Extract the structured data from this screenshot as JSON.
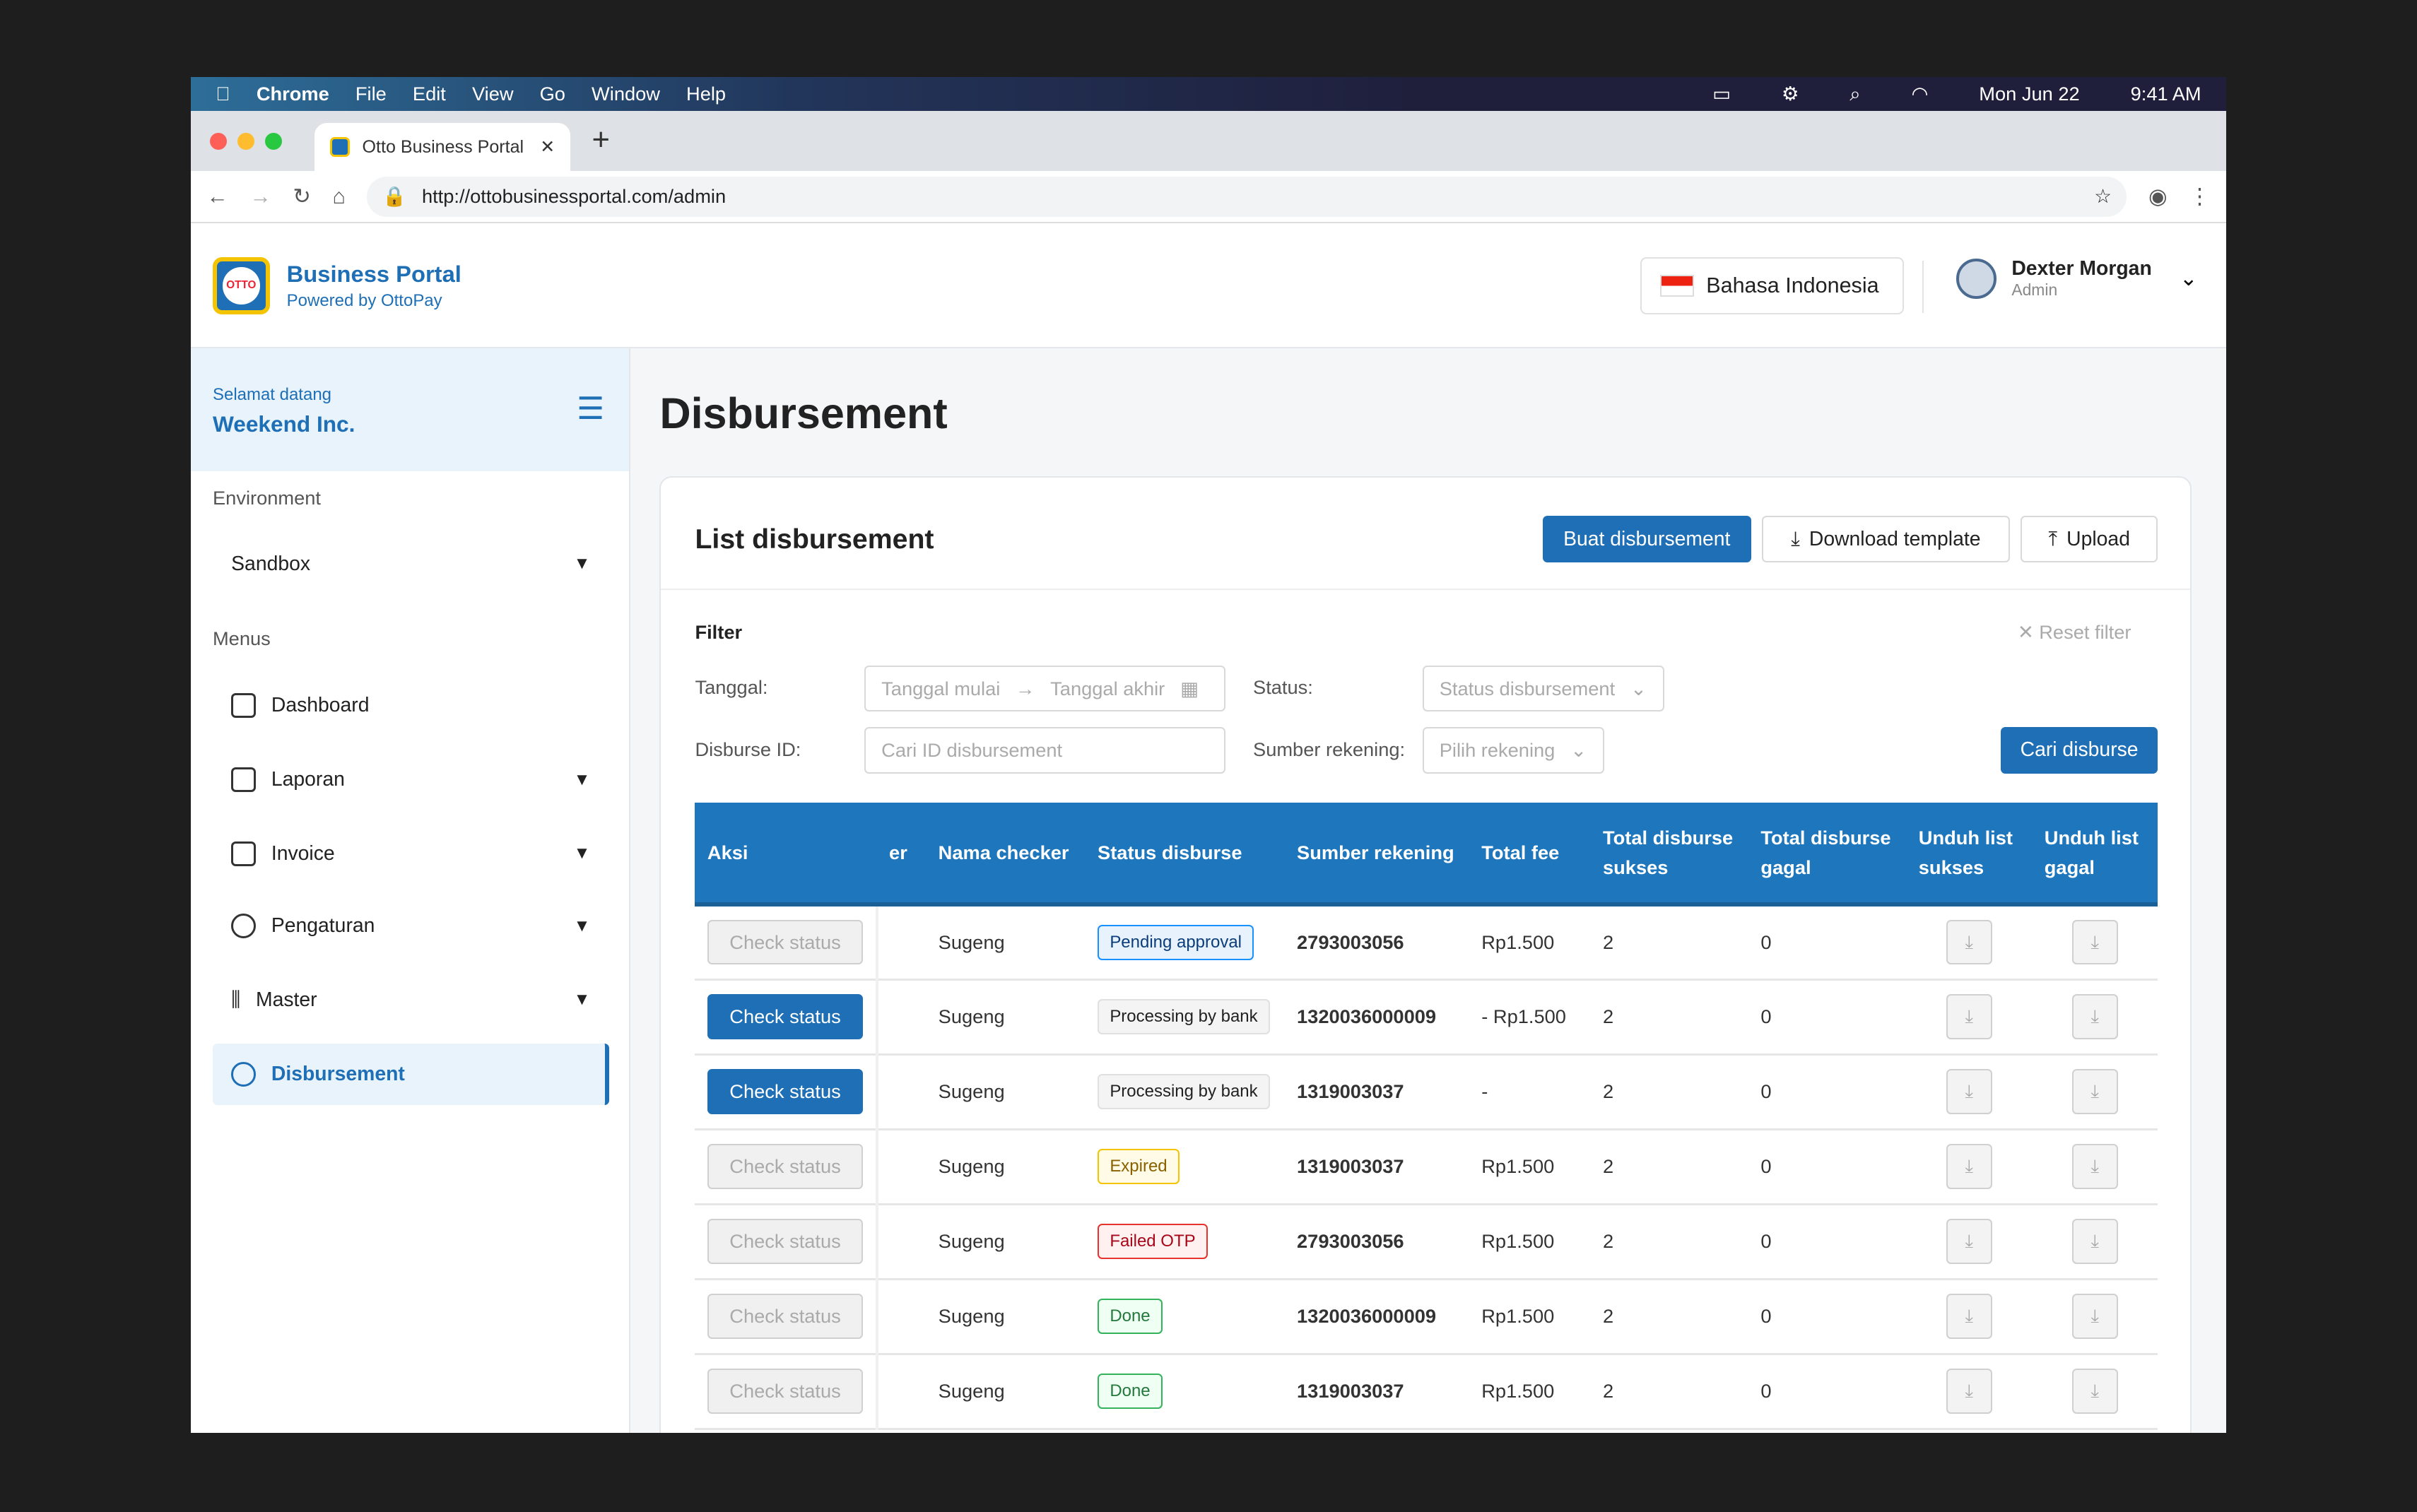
{
  "menubar": {
    "app": "Chrome",
    "items": [
      "File",
      "Edit",
      "View",
      "Go",
      "Window",
      "Help"
    ],
    "date": "Mon Jun 22",
    "time": "9:41 AM"
  },
  "browser": {
    "tab_title": "Otto Business Portal",
    "url": "http://ottobusinessportal.com/admin"
  },
  "header": {
    "brand": "Business Portal",
    "powered": "Powered by OttoPay",
    "language": "Bahasa Indonesia",
    "user_name": "Dexter Morgan",
    "user_role": "Admin"
  },
  "sidebar": {
    "welcome": "Selamat datang",
    "company": "Weekend Inc.",
    "env_label": "Environment",
    "env_value": "Sandbox",
    "menus_label": "Menus",
    "items": [
      {
        "label": "Dashboard"
      },
      {
        "label": "Laporan"
      },
      {
        "label": "Invoice"
      },
      {
        "label": "Pengaturan"
      },
      {
        "label": "Master"
      },
      {
        "label": "Disbursement"
      }
    ]
  },
  "page": {
    "title": "Disbursement",
    "card_title": "List disbursement",
    "create": "Buat disbursement",
    "download_template": "Download template",
    "upload": "Upload"
  },
  "filter": {
    "title": "Filter",
    "reset": "Reset filter",
    "date_label": "Tanggal:",
    "start_ph": "Tanggal mulai",
    "end_ph": "Tanggal akhir",
    "status_label": "Status:",
    "status_ph": "Status disbursement",
    "id_label": "Disburse ID:",
    "id_ph": "Cari ID disbursement",
    "source_label": "Sumber rekening:",
    "source_ph": "Pilih rekening",
    "search": "Cari disburse"
  },
  "table": {
    "headers": [
      "Aksi",
      "er",
      "Nama checker",
      "Status disburse",
      "Sumber rekening",
      "Total fee",
      "Total disburse sukses",
      "Total disburse gagal",
      "Unduh list sukses",
      "Unduh list gagal"
    ],
    "rows": [
      {
        "action": "Check status",
        "enabled": false,
        "checker": "Sugeng",
        "status": "Pending approval",
        "tone": "blue",
        "account": "2793003056",
        "fee": "Rp1.500",
        "ok": "2",
        "fail": "0"
      },
      {
        "action": "Check status",
        "enabled": true,
        "checker": "Sugeng",
        "status": "Processing by bank",
        "tone": "grey",
        "account": "1320036000009",
        "fee": "-  Rp1.500",
        "ok": "2",
        "fail": "0"
      },
      {
        "action": "Check status",
        "enabled": true,
        "checker": "Sugeng",
        "status": "Processing by bank",
        "tone": "grey",
        "account": "1319003037",
        "fee": "-",
        "ok": "2",
        "fail": "0"
      },
      {
        "action": "Check status",
        "enabled": false,
        "checker": "Sugeng",
        "status": "Expired",
        "tone": "yellow",
        "account": "1319003037",
        "fee": "Rp1.500",
        "ok": "2",
        "fail": "0"
      },
      {
        "action": "Check status",
        "enabled": false,
        "checker": "Sugeng",
        "status": "Failed OTP",
        "tone": "red",
        "account": "2793003056",
        "fee": "Rp1.500",
        "ok": "2",
        "fail": "0"
      },
      {
        "action": "Check status",
        "enabled": false,
        "checker": "Sugeng",
        "status": "Done",
        "tone": "green",
        "account": "1320036000009",
        "fee": "Rp1.500",
        "ok": "2",
        "fail": "0"
      },
      {
        "action": "Check status",
        "enabled": false,
        "checker": "Sugeng",
        "status": "Done",
        "tone": "green",
        "account": "1319003037",
        "fee": "Rp1.500",
        "ok": "2",
        "fail": "0"
      }
    ]
  },
  "colors": {
    "primary": "#1e6fb5",
    "header": "#1e76bd"
  }
}
